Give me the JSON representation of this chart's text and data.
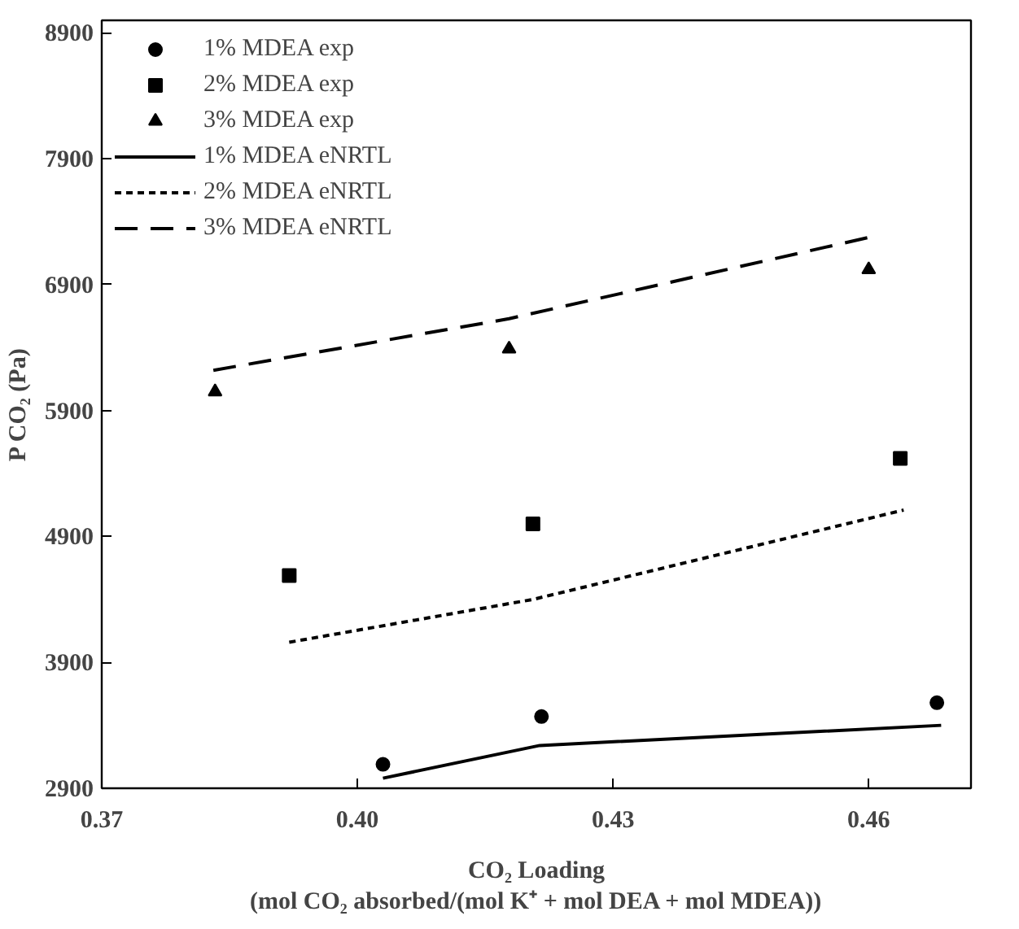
{
  "chart_data": {
    "type": "scatter",
    "xlabel": "CO₂ Loading\n(mol CO₂ absorbed/(mol K⁺ + mol DEA + mol MDEA))",
    "ylabel": "P CO₂ (Pa)",
    "xlim": [
      0.37,
      0.472
    ],
    "ylim": [
      2900,
      9000
    ],
    "xticks": [
      {
        "value": 0.37,
        "label": "0.37"
      },
      {
        "value": 0.4,
        "label": "0.40"
      },
      {
        "value": 0.43,
        "label": "0.43"
      },
      {
        "value": 0.46,
        "label": "0.46"
      }
    ],
    "yticks": [
      2900,
      3900,
      4900,
      5900,
      6900,
      7900,
      8900
    ],
    "grid": false,
    "legend": "top left",
    "series": [
      {
        "name": "1% MDEA exp",
        "marker": "circle",
        "color": "#000000",
        "x": [
          0.403,
          0.4216,
          0.468
        ],
        "values": [
          3090,
          3470,
          3580
        ]
      },
      {
        "name": "2% MDEA exp",
        "marker": "square",
        "color": "#000000",
        "x": [
          0.392,
          0.4206,
          0.4637
        ],
        "values": [
          4590,
          5000,
          5520
        ]
      },
      {
        "name": "3% MDEA exp",
        "marker": "triangle",
        "color": "#000000",
        "x": [
          0.3833,
          0.4178,
          0.46
        ],
        "values": [
          6050,
          6390,
          7020
        ]
      },
      {
        "name": "1% MDEA eNRTL",
        "type": "line",
        "line_style": "solid",
        "color": "#000000",
        "x": [
          0.403,
          0.4214,
          0.4685
        ],
        "values": [
          2980,
          3240,
          3400
        ]
      },
      {
        "name": "2% MDEA eNRTL",
        "type": "line",
        "line_style": "dotted",
        "color": "#000000",
        "x": [
          0.392,
          0.4206,
          0.4641
        ],
        "values": [
          4060,
          4400,
          5110
        ]
      },
      {
        "name": "3% MDEA eNRTL",
        "type": "line",
        "line_style": "dashed",
        "color": "#000000",
        "x": [
          0.3831,
          0.4178,
          0.4603
        ],
        "values": [
          6220,
          6630,
          7280
        ]
      }
    ]
  }
}
